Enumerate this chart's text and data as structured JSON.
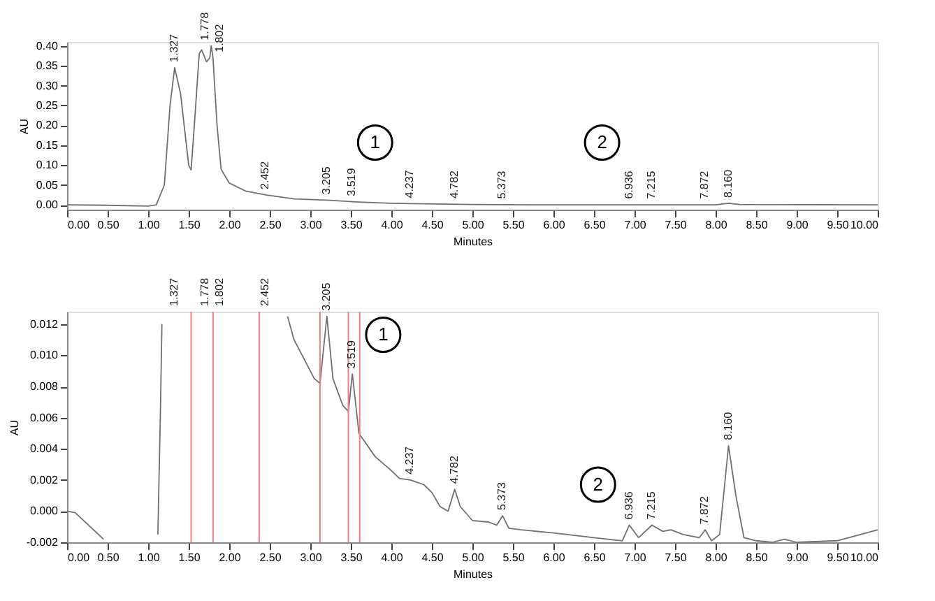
{
  "chart_data": [
    {
      "type": "line",
      "xlabel": "Minutes",
      "ylabel": "AU",
      "xlim": [
        0,
        10
      ],
      "ylim": [
        -0.012,
        0.41
      ],
      "xticks": [
        {
          "value": 0,
          "label": "0.00"
        },
        {
          "value": 0.5,
          "label": "0.50"
        },
        {
          "value": 1,
          "label": "1.00"
        },
        {
          "value": 1.5,
          "label": "1.50"
        },
        {
          "value": 2,
          "label": "2.00"
        },
        {
          "value": 2.5,
          "label": "2.50"
        },
        {
          "value": 3,
          "label": "3.00"
        },
        {
          "value": 3.5,
          "label": "3.50"
        },
        {
          "value": 4,
          "label": "4.00"
        },
        {
          "value": 4.5,
          "label": "4.50"
        },
        {
          "value": 5,
          "label": "5.00"
        },
        {
          "value": 5.5,
          "label": "5.50"
        },
        {
          "value": 6,
          "label": "6.00"
        },
        {
          "value": 6.5,
          "label": "6.50"
        },
        {
          "value": 7,
          "label": "7.00"
        },
        {
          "value": 7.5,
          "label": "7.50"
        },
        {
          "value": 8,
          "label": "8.00"
        },
        {
          "value": 8.5,
          "label": "8.50"
        },
        {
          "value": 9,
          "label": "9.00"
        },
        {
          "value": 9.5,
          "label": "9.50"
        },
        {
          "value": 10,
          "label": "10.00"
        }
      ],
      "yticks": [
        {
          "value": 0,
          "label": "0.00"
        },
        0.05,
        {
          "value": 0.1,
          "label": "0.10"
        },
        0.15,
        {
          "value": 0.2,
          "label": "0.20"
        },
        0.25,
        {
          "value": 0.3,
          "label": "0.30"
        },
        0.35,
        {
          "value": 0.4,
          "label": "0.40"
        }
      ],
      "series": [
        {
          "color": "#707070",
          "x": [
            0,
            0.5,
            1.0,
            1.1,
            1.2,
            1.27,
            1.327,
            1.4,
            1.5,
            1.53,
            1.57,
            1.63,
            1.66,
            1.72,
            1.76,
            1.778,
            1.8,
            1.85,
            1.9,
            2.0,
            2.2,
            2.452,
            2.8,
            3.205,
            3.519,
            4.0,
            4.237,
            5.0,
            6.0,
            8.0,
            8.16,
            8.3,
            10
          ],
          "values": [
            0,
            -0.001,
            -0.003,
            0,
            0.05,
            0.25,
            0.345,
            0.28,
            0.1,
            0.088,
            0.2,
            0.38,
            0.39,
            0.36,
            0.37,
            0.4,
            0.37,
            0.2,
            0.09,
            0.055,
            0.035,
            0.025,
            0.015,
            0.012,
            0.008,
            0.004,
            0.003,
            0.001,
            0,
            0,
            0.004,
            0.001,
            0
          ]
        }
      ],
      "annotations": [
        "1",
        "2",
        {
          "text": "1.327",
          "x": 1.327,
          "y": 0.345
        },
        {
          "text": "1.778",
          "x": 1.778,
          "y": 0.4
        },
        {
          "text": "1.802",
          "x": 1.802,
          "y": 0.37
        },
        {
          "text": "2.452",
          "x": 2.452,
          "y": 0.025
        },
        {
          "text": "3.205",
          "x": 3.205,
          "y": 0.012
        },
        {
          "text": "3.519",
          "x": 3.519,
          "y": 0.008
        },
        {
          "text": "4.237",
          "x": 4.237,
          "y": 0.003
        },
        {
          "text": "4.782",
          "x": 4.782,
          "y": 0.002
        },
        {
          "text": "5.373",
          "x": 5.373,
          "y": 0.001
        },
        {
          "text": "6.936",
          "x": 6.936,
          "y": 0.001
        },
        {
          "text": "7.215",
          "x": 7.215,
          "y": 0.001
        },
        {
          "text": "7.872",
          "x": 7.872,
          "y": 0.001
        },
        {
          "text": "8.160",
          "x": 8.16,
          "y": 0.004
        }
      ]
    },
    {
      "type": "line",
      "xlabel": "Minutes",
      "ylabel": "AU",
      "xlim": [
        0,
        10
      ],
      "ylim": [
        -0.002,
        0.0128
      ],
      "xticks": [
        {
          "value": 0,
          "label": "0.00"
        },
        {
          "value": 0.5,
          "label": "0.50"
        },
        {
          "value": 1,
          "label": "1.00"
        },
        {
          "value": 1.5,
          "label": "1.50"
        },
        {
          "value": 2,
          "label": "2.00"
        },
        {
          "value": 2.5,
          "label": "2.50"
        },
        {
          "value": 3,
          "label": "3.00"
        },
        {
          "value": 3.5,
          "label": "3.50"
        },
        {
          "value": 4,
          "label": "4.00"
        },
        {
          "value": 4.5,
          "label": "4.50"
        },
        {
          "value": 5,
          "label": "5.00"
        },
        {
          "value": 5.5,
          "label": "5.50"
        },
        {
          "value": 6,
          "label": "6.00"
        },
        {
          "value": 6.5,
          "label": "6.50"
        },
        {
          "value": 7,
          "label": "7.00"
        },
        {
          "value": 7.5,
          "label": "7.50"
        },
        {
          "value": 8,
          "label": "8.00"
        },
        {
          "value": 8.5,
          "label": "8.50"
        },
        {
          "value": 9,
          "label": "9.00"
        },
        {
          "value": 9.5,
          "label": "9.50"
        },
        {
          "value": 10,
          "label": "10.00"
        }
      ],
      "yticks": [
        -0.002,
        {
          "value": 0,
          "label": "0.000"
        },
        0.002,
        0.004,
        0.006,
        0.008,
        {
          "value": 0.01,
          "label": "0.010"
        },
        0.012
      ],
      "series": [
        {
          "color": "#707070",
          "x": [
            0,
            0.1,
            0.45,
            0.5,
            0.7,
            1.1,
            1.12,
            1.15,
            1.17,
            1.18,
            2.7,
            2.72,
            2.8,
            2.95,
            3.05,
            3.12,
            3.205,
            3.28,
            3.4,
            3.47,
            3.519,
            3.6,
            3.8,
            4.0,
            4.1,
            4.237,
            4.4,
            4.5,
            4.6,
            4.7,
            4.782,
            4.85,
            5.0,
            5.2,
            5.3,
            5.373,
            5.45,
            5.6,
            6.0,
            6.5,
            6.85,
            6.936,
            7.05,
            7.215,
            7.35,
            7.45,
            7.6,
            7.8,
            7.872,
            7.95,
            8.05,
            8.16,
            8.25,
            8.35,
            8.5,
            8.7,
            8.85,
            9.0,
            9.5,
            10
          ],
          "values": [
            0,
            -0.0001,
            -0.0018,
            null,
            null,
            null,
            -0.0015,
            0.006,
            0.012,
            null,
            null,
            0.0125,
            0.011,
            0.0095,
            0.0085,
            0.0082,
            0.0125,
            0.0085,
            0.0068,
            0.0064,
            0.0088,
            0.005,
            0.0035,
            0.0026,
            0.0021,
            0.002,
            0.0017,
            0.0012,
            0.0003,
            0.0,
            0.0014,
            0.0003,
            -0.0006,
            -0.0007,
            -0.0009,
            -0.0003,
            -0.0011,
            -0.0012,
            -0.0014,
            -0.0017,
            -0.0019,
            -0.0009,
            -0.0017,
            -0.0009,
            -0.0013,
            -0.0012,
            -0.0015,
            -0.0017,
            -0.0012,
            -0.0019,
            -0.0015,
            0.0042,
            0.001,
            -0.0017,
            -0.0019,
            -0.002,
            -0.0018,
            -0.002,
            -0.0019,
            -0.0012
          ]
        }
      ],
      "ref_lines": [
        {
          "axis": "x",
          "value": 1.53,
          "color": "#f08080"
        },
        {
          "axis": "x",
          "value": 1.8,
          "color": "#f08080"
        },
        {
          "axis": "x",
          "value": 2.37,
          "color": "#f08080"
        },
        {
          "axis": "x",
          "value": 3.12,
          "color": "#f08080"
        },
        {
          "axis": "x",
          "value": 3.47,
          "color": "#f08080"
        },
        {
          "axis": "x",
          "value": 3.61,
          "color": "#f08080"
        }
      ],
      "annotations": [
        "1",
        "2",
        "1.327",
        {
          "text": "1.778",
          "x": 1.778,
          "y": 0.0128
        },
        {
          "text": "1.802",
          "x": 1.802,
          "y": 0.0128
        },
        "2.452",
        {
          "text": "3.205",
          "x": 3.205,
          "y": 0.0125
        },
        {
          "text": "3.519",
          "x": 3.519,
          "y": 0.0088
        },
        {
          "text": "4.237",
          "x": 4.237,
          "y": 0.002
        },
        {
          "text": "4.782",
          "x": 4.782,
          "y": 0.0014
        },
        {
          "text": "5.373",
          "x": 5.373,
          "y": -0.0003
        },
        {
          "text": "6.936",
          "x": 6.936,
          "y": -0.0009
        },
        {
          "text": "7.215",
          "x": 7.215,
          "y": -0.0009
        },
        {
          "text": "7.872",
          "x": 7.872,
          "y": -0.0012
        },
        {
          "text": "8.160",
          "x": 8.16,
          "y": 0.0042
        }
      ]
    }
  ]
}
